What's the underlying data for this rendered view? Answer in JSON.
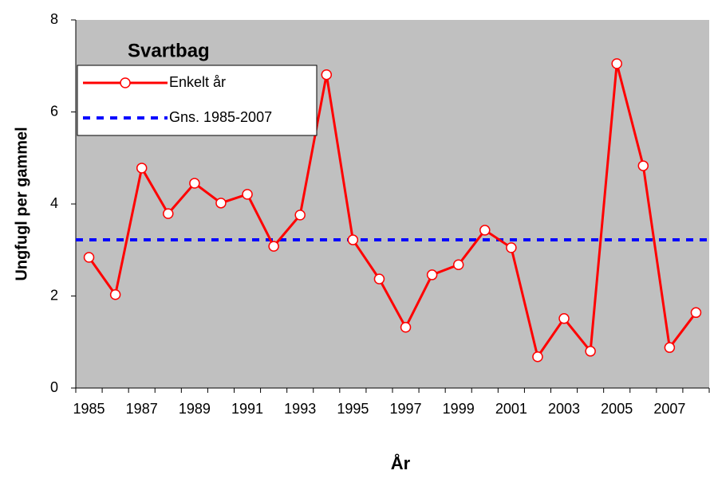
{
  "chart_data": {
    "type": "line",
    "title": "Svartbag",
    "x_label": "År",
    "y_label": "Ungfugl per gammel",
    "categories": [
      "1985",
      null,
      "1987",
      null,
      "1989",
      null,
      "1991",
      null,
      "1993",
      null,
      "1995",
      null,
      "1997",
      null,
      "1999",
      null,
      "2001",
      null,
      "2003",
      null,
      "2005",
      null,
      "2007",
      null
    ],
    "series": [
      {
        "name": "Enkelt år",
        "color": "#ff0000",
        "values": [
          2.84,
          2.03,
          4.78,
          3.79,
          4.45,
          4.02,
          4.21,
          3.08,
          3.76,
          6.81,
          3.22,
          2.37,
          1.32,
          2.46,
          2.68,
          3.43,
          3.05,
          0.68,
          1.51,
          0.8,
          7.05,
          4.83,
          0.88,
          1.64
        ]
      },
      {
        "name": "Gns. 1985-2007",
        "color": "#0000ff",
        "value": 3.22
      }
    ],
    "ylim": [
      0,
      8
    ],
    "yticks": [
      0,
      2,
      4,
      6,
      8
    ],
    "background": "#c0c0c0",
    "legend": "upper left"
  }
}
